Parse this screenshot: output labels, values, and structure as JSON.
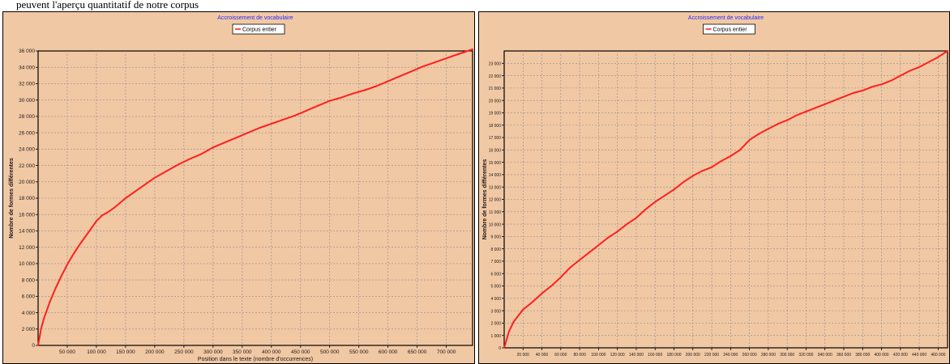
{
  "top_caption": "peuvent  l'aperçu quantitatif de notre corpus",
  "colors": {
    "background": "#f1c8a4",
    "series": "#ff1f1f",
    "grid": "#8c8c8c",
    "title": "#2a2aff",
    "axis_text": "#1a1a1a"
  },
  "chart_data": [
    {
      "type": "line",
      "title": "Accroissement de vocabulaire",
      "xlabel": "Position dans le texte (nombre d'occurrences)",
      "ylabel": "Nombre de formes différentes",
      "xlim": [
        0,
        745000
      ],
      "ylim": [
        0,
        36000
      ],
      "x_ticks": [
        50000,
        100000,
        150000,
        200000,
        250000,
        300000,
        350000,
        400000,
        450000,
        500000,
        550000,
        600000,
        650000,
        700000
      ],
      "x_tick_labels": [
        "50 000",
        "100 000",
        "150 000",
        "200 000",
        "250 000",
        "300 000",
        "350 000",
        "400 000",
        "450 000",
        "500 000",
        "550 000",
        "600 000",
        "650 000",
        "700 000"
      ],
      "y_ticks": [
        0,
        2000,
        4000,
        6000,
        8000,
        10000,
        12000,
        14000,
        16000,
        18000,
        20000,
        22000,
        24000,
        26000,
        28000,
        30000,
        32000,
        34000,
        36000
      ],
      "y_tick_labels": [
        "0",
        "2 000",
        "4 000",
        "6 000",
        "8 000",
        "10 000",
        "12 000",
        "14 000",
        "16 000",
        "18 000",
        "20 000",
        "22 000",
        "24 000",
        "26 000",
        "28 000",
        "30 000",
        "32 000",
        "34 000",
        "36 000"
      ],
      "grid": true,
      "legend_position": "top-center",
      "series": [
        {
          "name": "Corpus entier",
          "x": [
            0,
            5000,
            10000,
            20000,
            30000,
            40000,
            50000,
            60000,
            70000,
            80000,
            90000,
            100000,
            110000,
            120000,
            130000,
            140000,
            150000,
            160000,
            180000,
            200000,
            220000,
            240000,
            260000,
            280000,
            300000,
            320000,
            340000,
            360000,
            380000,
            400000,
            420000,
            440000,
            460000,
            480000,
            500000,
            520000,
            540000,
            560000,
            580000,
            600000,
            620000,
            640000,
            660000,
            680000,
            700000,
            720000,
            745000
          ],
          "y": [
            0,
            2000,
            3300,
            5300,
            7000,
            8500,
            9900,
            11100,
            12200,
            13200,
            14200,
            15200,
            15900,
            16300,
            16800,
            17400,
            18000,
            18500,
            19500,
            20500,
            21300,
            22100,
            22800,
            23400,
            24200,
            24800,
            25400,
            26000,
            26600,
            27100,
            27600,
            28100,
            28700,
            29300,
            29900,
            30300,
            30800,
            31200,
            31700,
            32300,
            32900,
            33500,
            34100,
            34600,
            35100,
            35600,
            36200
          ]
        }
      ]
    },
    {
      "type": "line",
      "title": "Accroissement de vocabulaire",
      "xlabel": "",
      "ylabel": "Nombre de formes différentes",
      "xlim": [
        0,
        470000
      ],
      "ylim": [
        0,
        24000
      ],
      "x_ticks": [
        20000,
        40000,
        60000,
        80000,
        100000,
        120000,
        140000,
        160000,
        180000,
        200000,
        220000,
        240000,
        260000,
        280000,
        300000,
        320000,
        340000,
        360000,
        380000,
        400000,
        420000,
        440000,
        460000
      ],
      "x_tick_labels": [
        "20 000",
        "40 000",
        "60 000",
        "80 000",
        "100 000",
        "120 000",
        "140 000",
        "160 000",
        "180 000",
        "200 000",
        "220 000",
        "240 000",
        "260 000",
        "280 000",
        "300 000",
        "320 000",
        "340 000",
        "360 000",
        "380 000",
        "400 000",
        "420 000",
        "440 000",
        "460 000"
      ],
      "y_ticks": [
        0,
        1000,
        2000,
        3000,
        4000,
        5000,
        6000,
        7000,
        8000,
        9000,
        10000,
        11000,
        12000,
        13000,
        14000,
        15000,
        16000,
        17000,
        18000,
        19000,
        20000,
        21000,
        22000,
        23000
      ],
      "y_tick_labels": [
        "0",
        "1 000",
        "2 000",
        "3 000",
        "4 000",
        "5 000",
        "6 000",
        "7 000",
        "8 000",
        "9 000",
        "10 000",
        "11 000",
        "12 000",
        "13 000",
        "14 000",
        "15 000",
        "16 000",
        "17 000",
        "18 000",
        "19 000",
        "20 000",
        "21 000",
        "22 000",
        "23 000"
      ],
      "grid": true,
      "legend_position": "top-center",
      "series": [
        {
          "name": "Corpus entier",
          "x": [
            0,
            5000,
            10000,
            20000,
            30000,
            40000,
            50000,
            60000,
            70000,
            80000,
            90000,
            100000,
            110000,
            120000,
            130000,
            140000,
            150000,
            160000,
            170000,
            180000,
            190000,
            200000,
            210000,
            220000,
            230000,
            240000,
            250000,
            260000,
            270000,
            280000,
            290000,
            300000,
            310000,
            320000,
            330000,
            340000,
            350000,
            360000,
            370000,
            380000,
            390000,
            400000,
            410000,
            420000,
            430000,
            440000,
            450000,
            460000,
            470000
          ],
          "y": [
            0,
            1300,
            2100,
            3100,
            3700,
            4400,
            5000,
            5700,
            6500,
            7100,
            7700,
            8300,
            8900,
            9400,
            10000,
            10500,
            11200,
            11800,
            12300,
            12800,
            13400,
            13900,
            14300,
            14600,
            15100,
            15500,
            16000,
            16800,
            17300,
            17700,
            18100,
            18400,
            18800,
            19100,
            19400,
            19700,
            20000,
            20300,
            20600,
            20800,
            21100,
            21300,
            21600,
            22000,
            22400,
            22700,
            23100,
            23500,
            24000
          ]
        }
      ]
    }
  ]
}
